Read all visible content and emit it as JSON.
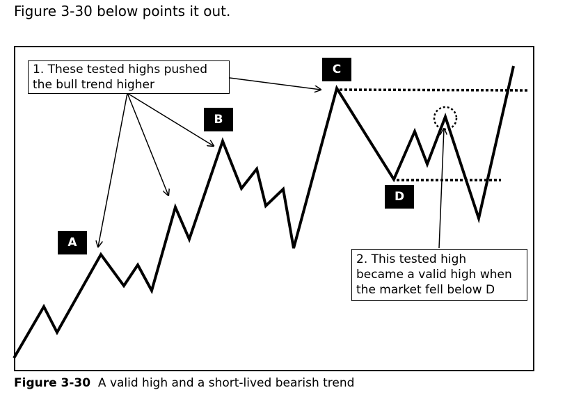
{
  "intro_text": "Figure 3-30 below points it out.",
  "callout_1": {
    "line1": "1. These tested highs pushed",
    "line2": "the bull trend higher"
  },
  "callout_2": {
    "line1": "2. This tested high",
    "line2": "became a valid high when",
    "line3": "the market fell below D"
  },
  "labels": {
    "a": "A",
    "b": "B",
    "c": "C",
    "d": "D"
  },
  "caption": {
    "number": "Figure 3-30",
    "text": "A valid high and a short-lived bearish trend"
  }
}
